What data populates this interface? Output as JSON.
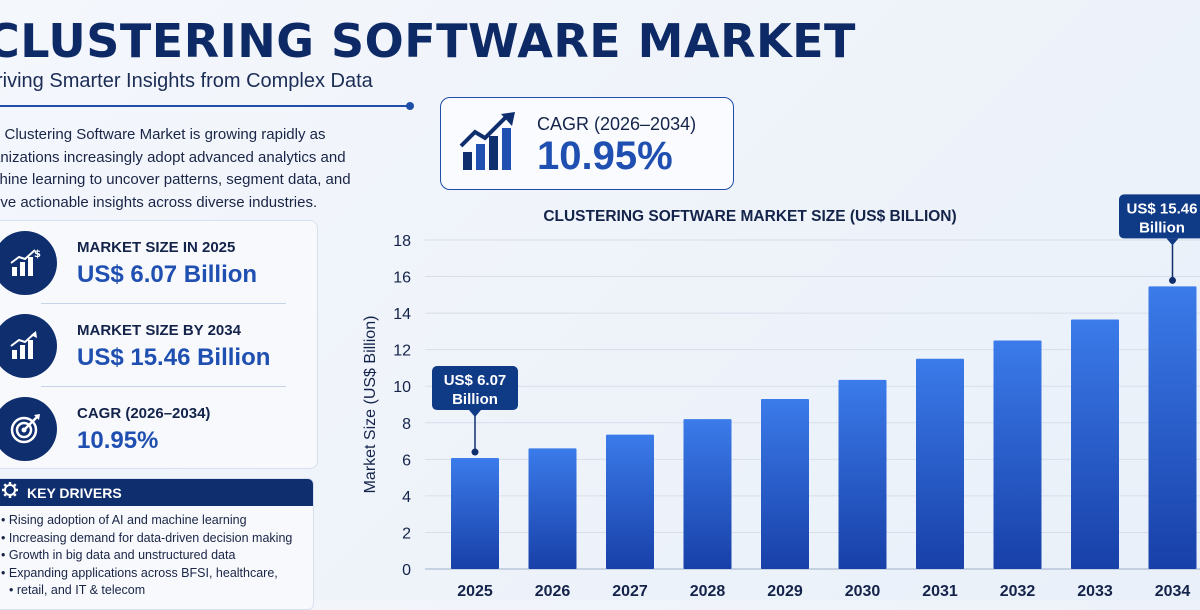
{
  "header": {
    "title": "CLUSTERING SOFTWARE MARKET",
    "subtitle": "riving Smarter Insights from Complex Data"
  },
  "intro": {
    "lines": [
      "e Clustering Software Market is growing rapidly as",
      "anizations increasingly adopt advanced analytics and",
      "chine learning to uncover patterns, segment data, and",
      "rive actionable insights across diverse industries."
    ]
  },
  "stats": [
    {
      "label": "MARKET SIZE IN 2025",
      "value": "US$ 6.07 Billion",
      "icon": "chart-dollar-icon"
    },
    {
      "label": "MARKET SIZE BY 2034",
      "value": "US$ 15.46 Billion",
      "icon": "growth-chart-icon"
    },
    {
      "label": "CAGR (2026–2034)",
      "value": "10.95%",
      "icon": "target-icon"
    }
  ],
  "drivers": {
    "title": "KEY DRIVERS",
    "items": [
      "Rising adoption of AI and machine learning",
      "Increasing demand for data-driven decision making",
      "Growth in big data and unstructured data",
      "Expanding applications across BFSI, healthcare,",
      "retail, and IT & telecom"
    ]
  },
  "cagr_box": {
    "label": "CAGR (2026–2034)",
    "value": "10.95%"
  },
  "colors": {
    "navy": "#0f2e6e",
    "accent": "#1f4fb0",
    "bar_top": "#3b7bea",
    "bar_bottom": "#1840a8"
  },
  "chart_data": {
    "type": "bar",
    "title": "CLUSTERING SOFTWARE MARKET SIZE (US$ BILLION)",
    "ylabel": "Market Size (US$ Billion)",
    "xlabel": "",
    "categories": [
      "2025",
      "2026",
      "2027",
      "2028",
      "2029",
      "2030",
      "2031",
      "2032",
      "2033",
      "2034"
    ],
    "values": [
      6.07,
      6.6,
      7.35,
      8.2,
      9.3,
      10.35,
      11.5,
      12.5,
      13.65,
      15.46
    ],
    "ylim": [
      0,
      18
    ],
    "yticks": [
      0,
      2,
      4,
      6,
      8,
      10,
      12,
      14,
      16,
      18
    ],
    "grid": true,
    "annotations": [
      {
        "category": "2025",
        "lines": [
          "US$ 6.07",
          "Billion"
        ]
      },
      {
        "category": "2034",
        "lines": [
          "US$ 15.46",
          "Billion"
        ]
      }
    ]
  }
}
